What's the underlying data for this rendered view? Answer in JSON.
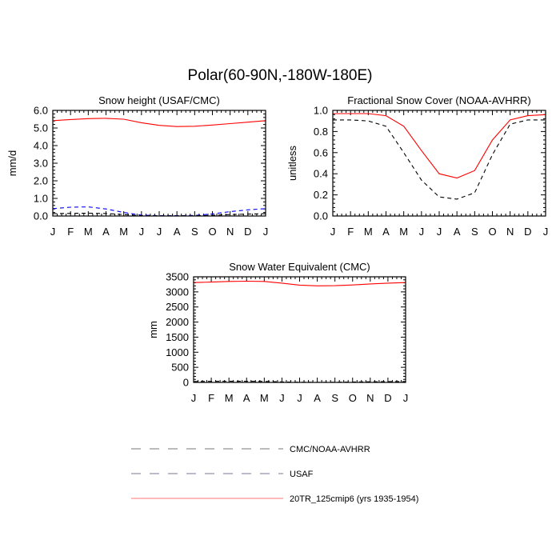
{
  "title": "Polar(60-90N,-180W-180E)",
  "colors": {
    "model": "#ff0000",
    "cmc_noaa": "#000000",
    "usaf": "#0000ff",
    "legend_gray": "#999999",
    "legend_red": "#ff7777"
  },
  "legend": [
    {
      "label": "CMC/NOAA-AVHRR",
      "style": "dashed",
      "color": "#777777"
    },
    {
      "label": "USAF",
      "style": "dashed",
      "color": "#777799"
    },
    {
      "label": "20TR_125cmip6 (yrs 1935-1954)",
      "style": "solid",
      "color": "#ff7777"
    }
  ],
  "chart_data": [
    {
      "type": "line",
      "title": "Snow height (USAF/CMC)",
      "xlabel": "",
      "ylabel": "mm/d",
      "categories": [
        "J",
        "F",
        "M",
        "A",
        "M",
        "J",
        "J",
        "A",
        "S",
        "O",
        "N",
        "D",
        "J"
      ],
      "yticks": [
        "0.0",
        "1.0",
        "2.0",
        "3.0",
        "4.0",
        "5.0",
        "6.0"
      ],
      "ylim": [
        0,
        6
      ],
      "series": [
        {
          "name": "20TR_125cmip6 (yrs 1935-1954)",
          "style": "solid",
          "color": "#ff0000",
          "values": [
            5.42,
            5.48,
            5.53,
            5.55,
            5.5,
            5.3,
            5.15,
            5.08,
            5.1,
            5.17,
            5.25,
            5.33,
            5.42
          ]
        },
        {
          "name": "USAF",
          "style": "dashed",
          "color": "#0000ff",
          "values": [
            0.42,
            0.5,
            0.52,
            0.4,
            0.2,
            0.05,
            0.02,
            0.02,
            0.03,
            0.12,
            0.25,
            0.35,
            0.42
          ]
        },
        {
          "name": "CMC/NOAA-AVHRR",
          "style": "dashed",
          "color": "#000000",
          "values": [
            0.13,
            0.15,
            0.16,
            0.14,
            0.08,
            0.02,
            0.01,
            0.01,
            0.01,
            0.04,
            0.08,
            0.11,
            0.13
          ]
        }
      ]
    },
    {
      "type": "line",
      "title": "Fractional Snow Cover (NOAA-AVHRR)",
      "xlabel": "",
      "ylabel": "unitless",
      "categories": [
        "J",
        "F",
        "M",
        "A",
        "M",
        "J",
        "J",
        "A",
        "S",
        "O",
        "N",
        "D",
        "J"
      ],
      "yticks": [
        "0.0",
        "0.2",
        "0.4",
        "0.6",
        "0.8",
        "1.0"
      ],
      "ylim": [
        0,
        1
      ],
      "series": [
        {
          "name": "20TR_125cmip6 (yrs 1935-1954)",
          "style": "solid",
          "color": "#ff0000",
          "values": [
            0.97,
            0.97,
            0.97,
            0.95,
            0.85,
            0.62,
            0.4,
            0.36,
            0.43,
            0.72,
            0.91,
            0.95,
            0.96
          ]
        },
        {
          "name": "CMC/NOAA-AVHRR",
          "style": "dashed",
          "color": "#000000",
          "values": [
            0.91,
            0.91,
            0.9,
            0.85,
            0.6,
            0.34,
            0.18,
            0.16,
            0.22,
            0.58,
            0.87,
            0.91,
            0.91
          ]
        }
      ]
    },
    {
      "type": "line",
      "title": "Snow Water Equivalent (CMC)",
      "xlabel": "",
      "ylabel": "mm",
      "categories": [
        "J",
        "F",
        "M",
        "A",
        "M",
        "J",
        "J",
        "A",
        "S",
        "O",
        "N",
        "D",
        "J"
      ],
      "yticks": [
        "0",
        "500",
        "1000",
        "1500",
        "2000",
        "2500",
        "3000",
        "3500"
      ],
      "ylim": [
        0,
        3500
      ],
      "series": [
        {
          "name": "20TR_125cmip6 (yrs 1935-1954)",
          "style": "solid",
          "color": "#ff0000",
          "values": [
            3310,
            3325,
            3345,
            3355,
            3345,
            3290,
            3225,
            3200,
            3205,
            3230,
            3265,
            3290,
            3310
          ]
        },
        {
          "name": "CMC/NOAA-AVHRR",
          "style": "dashed",
          "color": "#000000",
          "values": [
            30,
            35,
            38,
            38,
            32,
            15,
            5,
            3,
            5,
            12,
            20,
            26,
            30
          ]
        }
      ]
    }
  ]
}
